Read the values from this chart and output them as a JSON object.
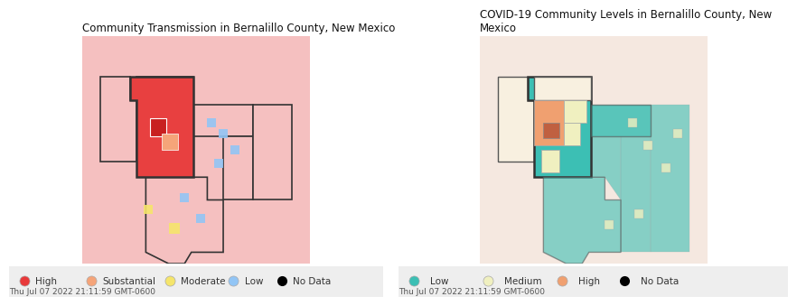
{
  "fig_width": 8.8,
  "fig_height": 3.36,
  "bg_color": "#ffffff",
  "panel_bg": "#f5f5f5",
  "left_title": "Community Transmission in Bernalillo County, New Mexico",
  "right_title": "COVID-19 Community Levels in Bernalillo County, New\nMexico",
  "timestamp": "Thu Jul 07 2022 21:11:59 GMT-0600",
  "left_legend": [
    {
      "label": "High",
      "color": "#e8393a"
    },
    {
      "label": "Substantial",
      "color": "#f5a479"
    },
    {
      "label": "Moderate",
      "color": "#f5e56b"
    },
    {
      "label": "Low",
      "color": "#92c5f5"
    },
    {
      "label": "No Data",
      "color": "#000000"
    }
  ],
  "right_legend": [
    {
      "label": "Low",
      "color": "#3cbfb4"
    },
    {
      "label": "Medium",
      "color": "#f0f0c0"
    },
    {
      "label": "High",
      "color": "#f0a070"
    },
    {
      "label": "No Data",
      "color": "#000000"
    }
  ],
  "left_map_bg": "#f5c0c0",
  "left_nm_color": "#e84040",
  "left_bernalillo_color": "#c82020",
  "left_substantial_color": "#f5a479",
  "left_moderate_color": "#f5e56b",
  "left_low_color": "#92c5f5",
  "right_map_bg": "#f5e8e0",
  "right_nm_teal": "#3cbfb4",
  "right_nm_medium": "#f0f0c0",
  "right_nm_high": "#f0a070",
  "right_bernalillo_color": "#c06040",
  "right_low_teal": "#3cbfb4",
  "right_medium_yellow": "#f0f0c0"
}
